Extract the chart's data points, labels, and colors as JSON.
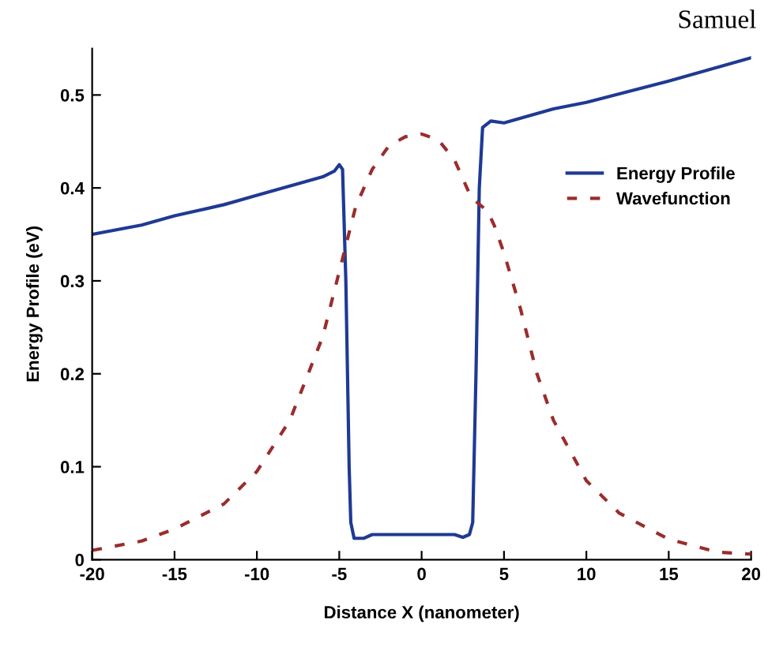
{
  "chart_data": {
    "type": "line",
    "xlabel": "Distance X (nanometer)",
    "ylabel": "Energy Profile (eV)",
    "annotations": [
      "Samuel"
    ],
    "xlim": [
      -20,
      20
    ],
    "xticks": [
      -20,
      -15,
      -10,
      -5,
      0,
      5,
      10,
      15,
      20
    ],
    "ylim": [
      0,
      0.55
    ],
    "yticks": [
      0,
      0.1,
      0.2,
      0.3,
      0.4,
      0.5
    ],
    "grid": false,
    "legend": "top right",
    "series": [
      {
        "name": "Energy Profile",
        "color": "#1f3a93",
        "line_style": "solid",
        "x": [
          -20,
          -17,
          -15,
          -12,
          -10,
          -8,
          -6,
          -5.3,
          -5,
          -4.8,
          -4.6,
          -4.4,
          -4.3,
          -4.1,
          -3.5,
          -3,
          2,
          2.5,
          2.9,
          3.1,
          3.3,
          3.5,
          3.7,
          4.2,
          5,
          8,
          10,
          15,
          20
        ],
        "values": [
          0.35,
          0.36,
          0.37,
          0.382,
          0.392,
          0.402,
          0.412,
          0.418,
          0.425,
          0.42,
          0.3,
          0.1,
          0.04,
          0.023,
          0.023,
          0.027,
          0.027,
          0.024,
          0.027,
          0.04,
          0.2,
          0.4,
          0.465,
          0.472,
          0.47,
          0.485,
          0.492,
          0.515,
          0.54
        ]
      },
      {
        "name": "Wavefunction",
        "color": "#9b2c2c",
        "line_style": "dashed",
        "x": [
          -20,
          -17,
          -15,
          -12,
          -10,
          -8,
          -6,
          -5,
          -4,
          -3,
          -2,
          -1,
          0,
          1,
          2,
          3,
          4,
          4.4,
          5,
          6,
          7,
          8,
          10,
          12,
          15,
          18,
          20
        ],
        "values": [
          0.01,
          0.02,
          0.033,
          0.06,
          0.095,
          0.15,
          0.24,
          0.31,
          0.38,
          0.42,
          0.445,
          0.455,
          0.458,
          0.452,
          0.43,
          0.39,
          0.375,
          0.36,
          0.33,
          0.27,
          0.2,
          0.15,
          0.085,
          0.05,
          0.022,
          0.008,
          0.006
        ]
      }
    ]
  }
}
